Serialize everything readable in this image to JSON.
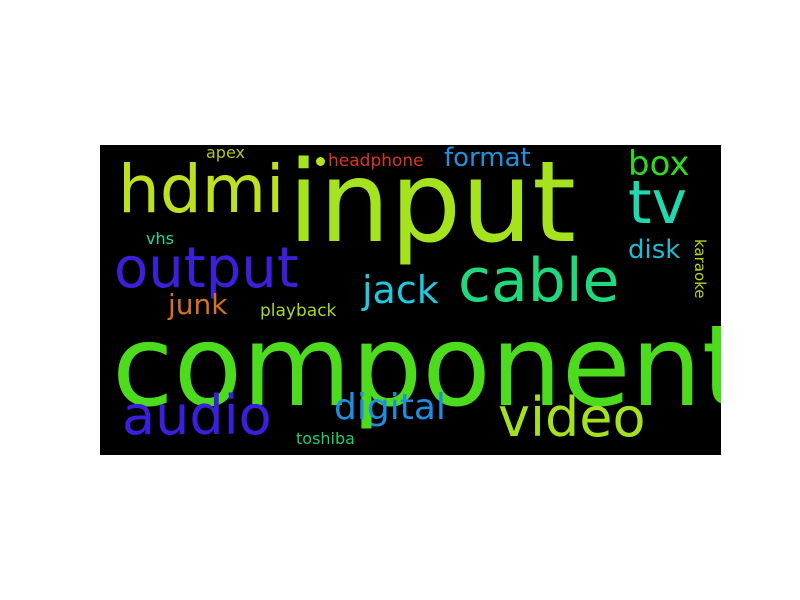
{
  "word_cloud": {
    "background": "#000000",
    "words": [
      {
        "text": "component",
        "color": "#4ddb1e",
        "rotated": false
      },
      {
        "text": "input",
        "color": "#a6e31f",
        "rotated": false
      },
      {
        "text": "output",
        "color": "#3c1fd9",
        "rotated": false
      },
      {
        "text": "hdmi",
        "color": "#bde020",
        "rotated": false
      },
      {
        "text": "cable",
        "color": "#1fd97c",
        "rotated": false
      },
      {
        "text": "tv",
        "color": "#1fd9b0",
        "rotated": false
      },
      {
        "text": "audio",
        "color": "#3a1fde",
        "rotated": false
      },
      {
        "text": "video",
        "color": "#a4e21f",
        "rotated": false
      },
      {
        "text": "digital",
        "color": "#1f8de0",
        "rotated": false
      },
      {
        "text": "jack",
        "color": "#1fc9df",
        "rotated": false
      },
      {
        "text": "box",
        "color": "#30d91f",
        "rotated": false
      },
      {
        "text": "format",
        "color": "#1f92dc",
        "rotated": false
      },
      {
        "text": "disk",
        "color": "#1fbcd6",
        "rotated": false
      },
      {
        "text": "junk",
        "color": "#d5711f",
        "rotated": false
      },
      {
        "text": "playback",
        "color": "#a8d91f",
        "rotated": false
      },
      {
        "text": "headphone",
        "color": "#d9361f",
        "rotated": false
      },
      {
        "text": "apex",
        "color": "#b6c51f",
        "rotated": false
      },
      {
        "text": "vhs",
        "color": "#1fd9a2",
        "rotated": false
      },
      {
        "text": "toshiba",
        "color": "#1fcf6a",
        "rotated": false
      },
      {
        "text": "karaoke",
        "color": "#b9d41f",
        "rotated": true
      }
    ]
  }
}
